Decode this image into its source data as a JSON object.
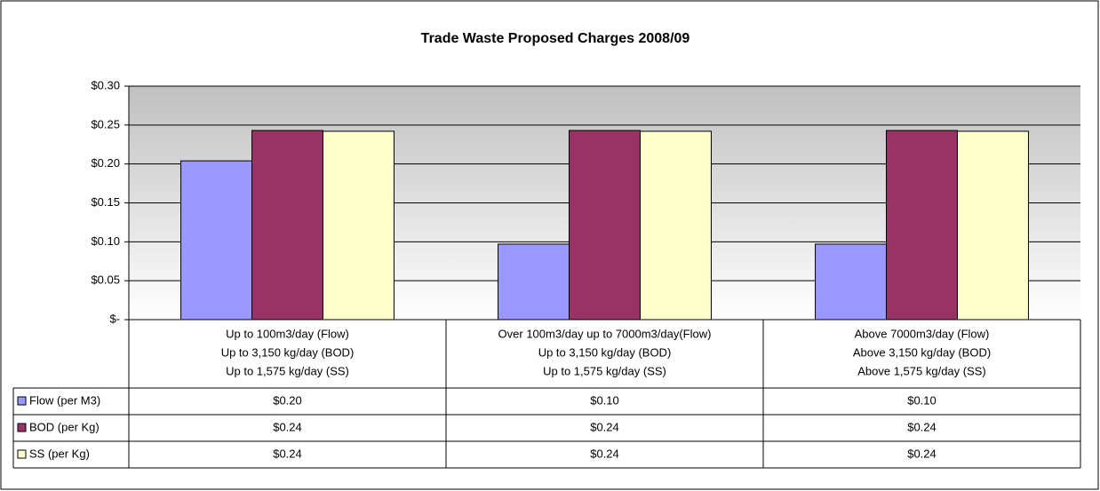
{
  "chart_data": {
    "type": "bar",
    "title": "Trade Waste Proposed Charges 2008/09",
    "categories": [
      [
        "Up to 100m3/day (Flow)",
        "Up to 3,150 kg/day (BOD)",
        "Up to 1,575 kg/day (SS)"
      ],
      [
        "Over 100m3/day up to 7000m3/day(Flow)",
        "Up to 3,150 kg/day (BOD)",
        "Up to 1,575 kg/day (SS)"
      ],
      [
        "Above 7000m3/day (Flow)",
        "Above 3,150 kg/day (BOD)",
        "Above 1,575 kg/day (SS)"
      ]
    ],
    "series": [
      {
        "name": "Flow (per M3)",
        "color": "#9999ff",
        "values": [
          0.204,
          0.097,
          0.097
        ],
        "value_labels": [
          "$0.20",
          "$0.10",
          "$0.10"
        ]
      },
      {
        "name": "BOD (per Kg)",
        "color": "#993366",
        "values": [
          0.243,
          0.243,
          0.243
        ],
        "value_labels": [
          "$0.24",
          "$0.24",
          "$0.24"
        ]
      },
      {
        "name": "SS (per Kg)",
        "color": "#ffffcc",
        "values": [
          0.242,
          0.242,
          0.242
        ],
        "value_labels": [
          "$0.24",
          "$0.24",
          "$0.24"
        ]
      }
    ],
    "ylim": [
      0,
      0.3
    ],
    "yticks": [
      {
        "value": 0,
        "label": "$-"
      },
      {
        "value": 0.05,
        "label": "$0.05"
      },
      {
        "value": 0.1,
        "label": "$0.10"
      },
      {
        "value": 0.15,
        "label": "$0.15"
      },
      {
        "value": 0.2,
        "label": "$0.20"
      },
      {
        "value": 0.25,
        "label": "$0.25"
      },
      {
        "value": 0.3,
        "label": "$0.30"
      }
    ],
    "grid": true
  }
}
